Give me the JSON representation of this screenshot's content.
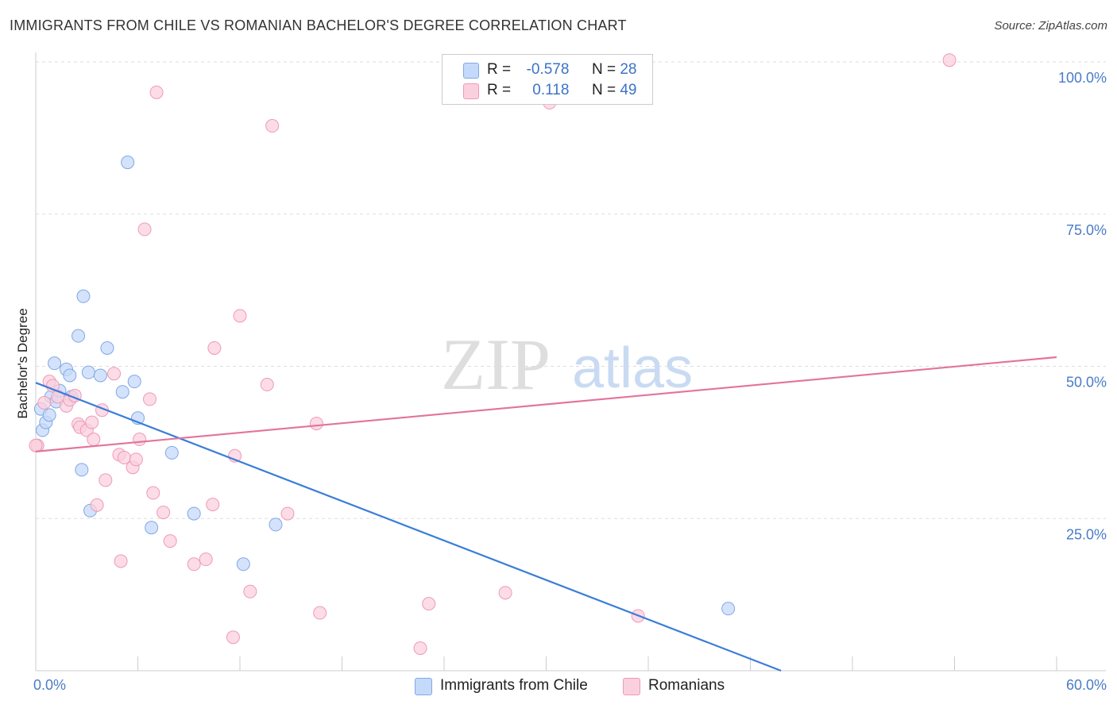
{
  "title": "IMMIGRANTS FROM CHILE VS ROMANIAN BACHELOR'S DEGREE CORRELATION CHART",
  "source": "Source: ZipAtlas.com",
  "watermark": {
    "zip": "ZIP",
    "atlas": "atlas"
  },
  "legend": {
    "rows": [
      {
        "r_label": "R =",
        "r_value": "-0.578",
        "n_label": "N =",
        "n_value": "28"
      },
      {
        "r_label": "R =",
        "r_value": "0.118",
        "n_label": "N =",
        "n_value": "49"
      }
    ]
  },
  "colors": {
    "blue_fill": "#c5dafa",
    "blue_stroke": "#7fa8e6",
    "blue_line": "#3b7dd8",
    "pink_fill": "#fbd0de",
    "pink_stroke": "#ee9ab8",
    "pink_line": "#e3739c",
    "tick_text": "#4a7cc6",
    "grid": "#dddddd"
  },
  "chart_data": {
    "type": "scatter",
    "title": "IMMIGRANTS FROM CHILE VS ROMANIAN BACHELOR'S DEGREE CORRELATION CHART",
    "xlabel": "",
    "ylabel": "Bachelor's Degree",
    "xlim": [
      0,
      60
    ],
    "ylim": [
      0,
      100
    ],
    "x_tick_labels": [
      "0.0%",
      "60.0%"
    ],
    "y_tick_labels": [
      "100.0%",
      "75.0%",
      "50.0%",
      "25.0%"
    ],
    "y_ticks": [
      100,
      75,
      50,
      25
    ],
    "grid": true,
    "legend_position": "bottom-center",
    "series": [
      {
        "name": "Immigrants from Chile",
        "color": "#7fa8e6",
        "points": [
          [
            0.3,
            43.0
          ],
          [
            0.4,
            39.5
          ],
          [
            0.6,
            40.8
          ],
          [
            0.8,
            42.0
          ],
          [
            0.9,
            45.0
          ],
          [
            1.1,
            50.5
          ],
          [
            1.2,
            44.2
          ],
          [
            1.4,
            46.0
          ],
          [
            1.8,
            49.5
          ],
          [
            2.0,
            48.5
          ],
          [
            2.1,
            45.0
          ],
          [
            2.5,
            55.0
          ],
          [
            2.7,
            33.0
          ],
          [
            2.8,
            61.5
          ],
          [
            3.1,
            49.0
          ],
          [
            3.2,
            26.3
          ],
          [
            3.8,
            48.5
          ],
          [
            4.2,
            53.0
          ],
          [
            5.1,
            45.8
          ],
          [
            5.4,
            83.5
          ],
          [
            5.8,
            47.5
          ],
          [
            6.0,
            41.5
          ],
          [
            6.8,
            23.5
          ],
          [
            8.0,
            35.8
          ],
          [
            9.3,
            25.8
          ],
          [
            12.2,
            17.5
          ],
          [
            14.1,
            24.0
          ],
          [
            40.7,
            10.2
          ]
        ],
        "trend": {
          "x": [
            0,
            43.8
          ],
          "y": [
            47.3,
            0
          ]
        }
      },
      {
        "name": "Romanians",
        "color": "#ee9ab8",
        "points": [
          [
            0.1,
            37.0
          ],
          [
            0.5,
            44.0
          ],
          [
            0.8,
            47.5
          ],
          [
            1.0,
            46.8
          ],
          [
            1.3,
            45.0
          ],
          [
            1.8,
            43.5
          ],
          [
            2.0,
            44.5
          ],
          [
            2.3,
            45.2
          ],
          [
            2.5,
            40.5
          ],
          [
            2.6,
            40.0
          ],
          [
            3.0,
            39.5
          ],
          [
            3.3,
            40.8
          ],
          [
            3.4,
            38.0
          ],
          [
            3.6,
            27.2
          ],
          [
            3.9,
            42.8
          ],
          [
            4.1,
            31.3
          ],
          [
            4.6,
            48.8
          ],
          [
            4.9,
            35.5
          ],
          [
            5.0,
            18.0
          ],
          [
            5.2,
            35.0
          ],
          [
            5.7,
            33.4
          ],
          [
            5.9,
            34.7
          ],
          [
            6.1,
            38.0
          ],
          [
            6.4,
            72.5
          ],
          [
            6.7,
            44.6
          ],
          [
            6.9,
            29.2
          ],
          [
            7.1,
            95.0
          ],
          [
            7.5,
            26.0
          ],
          [
            7.9,
            21.3
          ],
          [
            9.3,
            17.5
          ],
          [
            10.0,
            18.3
          ],
          [
            10.4,
            27.3
          ],
          [
            10.5,
            53.0
          ],
          [
            11.6,
            5.5
          ],
          [
            11.7,
            35.3
          ],
          [
            12.0,
            58.3
          ],
          [
            12.6,
            13.0
          ],
          [
            13.6,
            47.0
          ],
          [
            13.9,
            89.5
          ],
          [
            14.8,
            25.8
          ],
          [
            16.5,
            40.6
          ],
          [
            16.7,
            9.5
          ],
          [
            22.6,
            3.7
          ],
          [
            23.1,
            11.0
          ],
          [
            27.6,
            12.8
          ],
          [
            30.2,
            93.3
          ],
          [
            35.4,
            9.0
          ],
          [
            53.7,
            100.3
          ],
          [
            0.0,
            37.0
          ]
        ],
        "trend": {
          "x": [
            0,
            60
          ],
          "y": [
            36.0,
            51.5
          ]
        }
      }
    ]
  },
  "bottom_legend": {
    "items": [
      "Immigrants from Chile",
      "Romanians"
    ]
  }
}
